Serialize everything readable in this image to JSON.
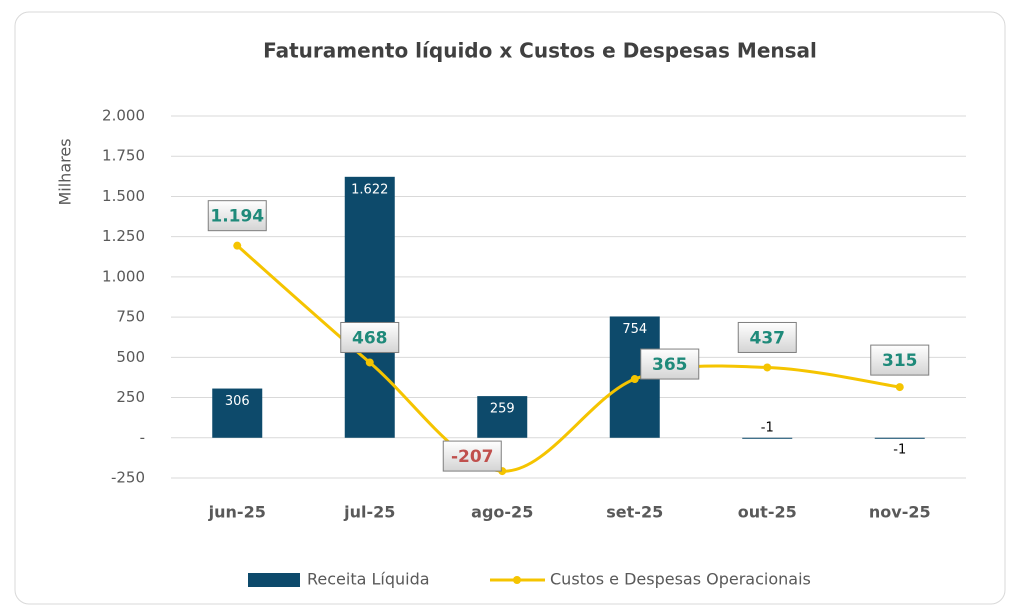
{
  "chart_data": {
    "type": "bar-line",
    "title": "Faturamento líquido x Custos e Despesas Mensal",
    "y_label": "Milhares",
    "categories": [
      "jun-25",
      "jul-25",
      "ago-25",
      "set-25",
      "out-25",
      "nov-25"
    ],
    "series": [
      {
        "name": "Receita Líquida",
        "type": "bar",
        "color": "#0d4a6b",
        "values": [
          306,
          1622,
          259,
          754,
          -1,
          -1
        ],
        "value_labels": [
          "306",
          "1.622",
          "259",
          "754",
          "-1",
          "-1"
        ]
      },
      {
        "name": "Custos e Despesas Operacionais",
        "type": "line",
        "color": "#f5c400",
        "values": [
          1194,
          468,
          -207,
          365,
          437,
          315
        ],
        "value_labels": [
          "1.194",
          "468",
          "-207",
          "365",
          "437",
          "315"
        ]
      }
    ],
    "ylim": [
      -250,
      2000
    ],
    "yticks": [
      -250,
      {
        "value": 0,
        "label": "-"
      },
      250,
      500,
      750,
      {
        "value": 1000,
        "label": "1.000"
      },
      {
        "value": 1250,
        "label": "1.250"
      },
      {
        "value": 1500,
        "label": "1.500"
      },
      {
        "value": 1750,
        "label": "1.750"
      },
      {
        "value": 2000,
        "label": "2.000"
      }
    ],
    "grid": true,
    "legend": "bottom"
  }
}
